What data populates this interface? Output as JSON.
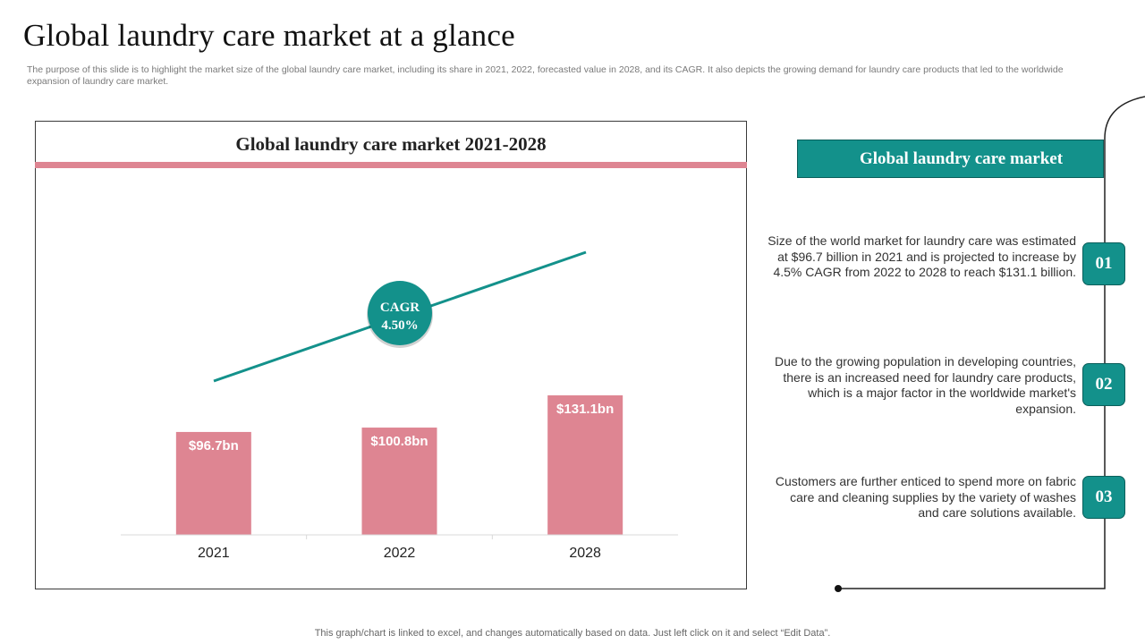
{
  "slide": {
    "title": "Global laundry care market at a glance",
    "subtitle": "The purpose of this slide is to highlight the market size of the global laundry care market, including its share in 2021, 2022, forecasted value in 2028, and its CAGR.  It also depicts the growing demand for laundry care products that led to the worldwide expansion of laundry care market.",
    "footnote": "This graph/chart is linked to excel,  and changes automatically based on data. Just left click on it and select “Edit Data”."
  },
  "chart_data": {
    "type": "bar",
    "title": "Global laundry care market 2021-2028",
    "categories": [
      "2021",
      "2022",
      "2028"
    ],
    "values": [
      96.7,
      100.8,
      131.1
    ],
    "value_labels": [
      "$96.7bn",
      "$100.8bn",
      "$131.1bn"
    ],
    "xlabel": "",
    "ylabel": "",
    "ylim": [
      0,
      131.1
    ],
    "grid": false,
    "legend": "none",
    "bar_color": "#de8592",
    "annotation": {
      "label": "CAGR",
      "value": "4.50%"
    }
  },
  "panel": {
    "header": "Global laundry  care market",
    "points": [
      {
        "number": "01",
        "text": "Size of the world market for laundry care was estimated at $96.7 billion in 2021 and is projected to increase by 4.5% CAGR from 2022 to 2028 to reach $131.1 billion."
      },
      {
        "number": "02",
        "text": "Due to the growing population in developing countries, there is an increased need for laundry care products, which is a major factor in the worldwide market's expansion."
      },
      {
        "number": "03",
        "text": "Customers are further enticed to spend more on fabric care and cleaning supplies by the variety of washes and care solutions available."
      }
    ]
  },
  "colors": {
    "accent": "#13918b",
    "bar": "#de8592",
    "divider": "#de8592"
  }
}
